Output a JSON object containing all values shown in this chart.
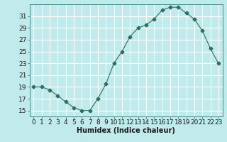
{
  "x": [
    0,
    1,
    2,
    3,
    4,
    5,
    6,
    7,
    8,
    9,
    10,
    11,
    12,
    13,
    14,
    15,
    16,
    17,
    18,
    19,
    20,
    21,
    22,
    23
  ],
  "y": [
    19,
    19,
    18.5,
    17.5,
    16.5,
    15.5,
    15,
    15,
    17,
    19.5,
    23,
    25,
    27.5,
    29,
    29.5,
    30.5,
    32,
    32.5,
    32.5,
    31.5,
    30.5,
    28.5,
    25.5,
    23
  ],
  "line_color": "#2d6e5e",
  "marker": "D",
  "marker_size": 2.5,
  "bg_color": "#c0eaeb",
  "grid_color": "#ffffff",
  "xlabel": "Humidex (Indice chaleur)",
  "ylabel": "",
  "ylim": [
    14,
    33
  ],
  "yticks": [
    15,
    17,
    19,
    21,
    23,
    25,
    27,
    29,
    31
  ],
  "xticks": [
    0,
    1,
    2,
    3,
    4,
    5,
    6,
    7,
    8,
    9,
    10,
    11,
    12,
    13,
    14,
    15,
    16,
    17,
    18,
    19,
    20,
    21,
    22,
    23
  ],
  "label_fontsize": 7,
  "tick_fontsize": 6.5
}
